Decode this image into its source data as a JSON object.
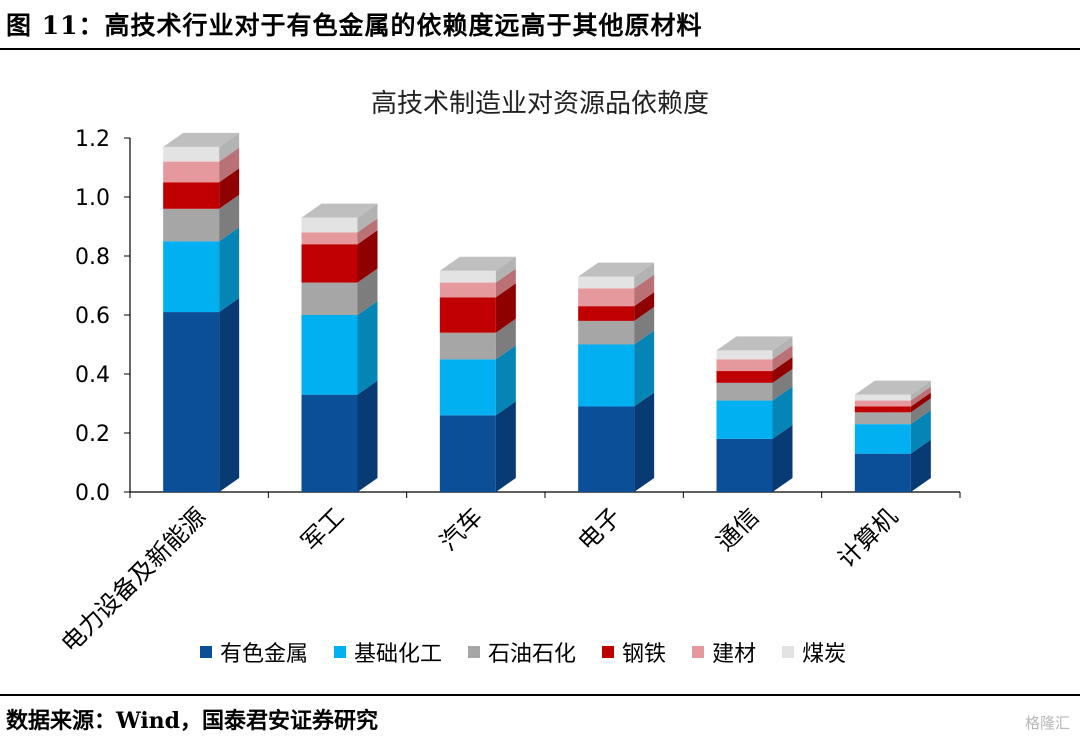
{
  "figure": {
    "title": "图 11：高技术行业对于有色金属的依赖度远高于其他原材料",
    "source": "数据来源：Wind，国泰君安证券研究",
    "watermark": "格隆汇"
  },
  "chart_data": {
    "type": "bar",
    "stacked": true,
    "style": "3d",
    "title": "高技术制造业对资源品依赖度",
    "categories": [
      "电力设备及新能源",
      "军工",
      "汽车",
      "电子",
      "通信",
      "计算机"
    ],
    "ylim": [
      0,
      1.2
    ],
    "yticks": [
      "0.0",
      "0.2",
      "0.4",
      "0.6",
      "0.8",
      "1.0",
      "1.2"
    ],
    "ytick_values": [
      0,
      0.2,
      0.4,
      0.6,
      0.8,
      1.0,
      1.2
    ],
    "legend_position": "bottom",
    "series": [
      {
        "name": "有色金属",
        "color": "#0b4f98",
        "side": "#083a73",
        "values": [
          0.61,
          0.33,
          0.26,
          0.29,
          0.18,
          0.13
        ]
      },
      {
        "name": "基础化工",
        "color": "#00b0f0",
        "side": "#0585b6",
        "values": [
          0.24,
          0.27,
          0.19,
          0.21,
          0.13,
          0.1
        ]
      },
      {
        "name": "石油石化",
        "color": "#a6a6a6",
        "side": "#7d7d7d",
        "values": [
          0.11,
          0.11,
          0.09,
          0.08,
          0.06,
          0.04
        ]
      },
      {
        "name": "钢铁",
        "color": "#c00000",
        "side": "#8f0000",
        "values": [
          0.09,
          0.13,
          0.12,
          0.05,
          0.04,
          0.02
        ]
      },
      {
        "name": "建材",
        "color": "#e6999d",
        "side": "#b97176",
        "values": [
          0.07,
          0.04,
          0.05,
          0.06,
          0.04,
          0.02
        ]
      },
      {
        "name": "煤炭",
        "color": "#e3e3e3",
        "side": "#b3b3b3",
        "values": [
          0.05,
          0.05,
          0.04,
          0.04,
          0.03,
          0.02
        ]
      }
    ]
  }
}
